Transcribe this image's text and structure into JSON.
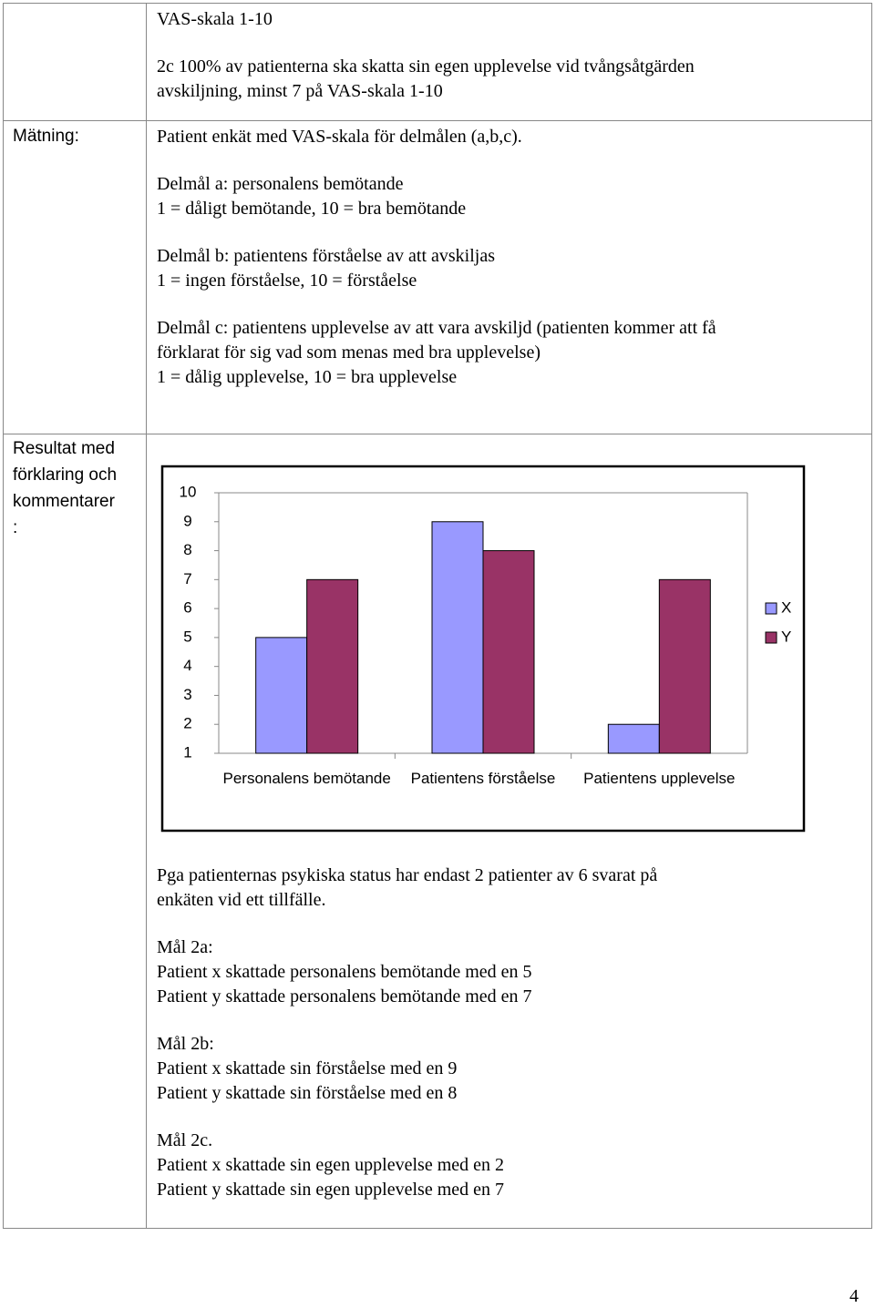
{
  "table": {
    "rows": [
      {
        "content": [
          [
            "VAS-skala 1-10"
          ],
          [
            "2c 100% av patienterna ska skatta sin egen  upplevelse vid tvångsåtgärden",
            "avskiljning, minst 7 på VAS-skala 1-10"
          ]
        ]
      },
      {
        "label": [
          "Mätning:"
        ],
        "content": [
          [
            "Patient enkät med VAS-skala för delmålen (a,b,c)."
          ],
          [
            "Delmål a: personalens bemötande",
            "1 = dåligt bemötande, 10 = bra bemötande"
          ],
          [
            "Delmål b: patientens förståelse av att avskiljas",
            "1 = ingen förståelse, 10 = förståelse"
          ],
          [
            "Delmål c: patientens upplevelse av att vara avskiljd (patienten kommer att få",
            "förklarat för sig vad som menas med bra upplevelse)",
            "1 = dålig upplevelse, 10 = bra upplevelse"
          ]
        ]
      },
      {
        "label": [
          "Resultat med",
          "förklaring och",
          "kommentarer",
          ":"
        ],
        "content": [
          [
            "Pga patienternas psykiska status har endast 2 patienter av 6 svarat på",
            "enkäten vid ett tillfälle."
          ],
          [
            "Mål 2a:",
            "Patient x skattade personalens bemötande med en 5",
            "Patient y skattade personalens bemötande med en 7"
          ],
          [
            "Mål 2b:",
            "Patient x skattade sin förståelse med en 9",
            "Patient y skattade sin förståelse med en 8"
          ],
          [
            "Mål 2c.",
            "Patient x skattade sin egen upplevelse med en 2",
            "Patient y skattade sin egen upplevelse med en 7"
          ]
        ]
      }
    ]
  },
  "chart_data": {
    "type": "bar",
    "categories": [
      "Personalens bemötande",
      "Patientens förståelse",
      "Patientens upplevelse"
    ],
    "series": [
      {
        "name": "X",
        "color": "#9999ff",
        "values": [
          5,
          9,
          2
        ]
      },
      {
        "name": "Y",
        "color": "#993366",
        "values": [
          7,
          8,
          7
        ]
      }
    ],
    "ylim": [
      1,
      10
    ],
    "yticks": [
      1,
      2,
      3,
      4,
      5,
      6,
      7,
      8,
      9,
      10
    ],
    "legend": "right"
  },
  "page_number": "4"
}
